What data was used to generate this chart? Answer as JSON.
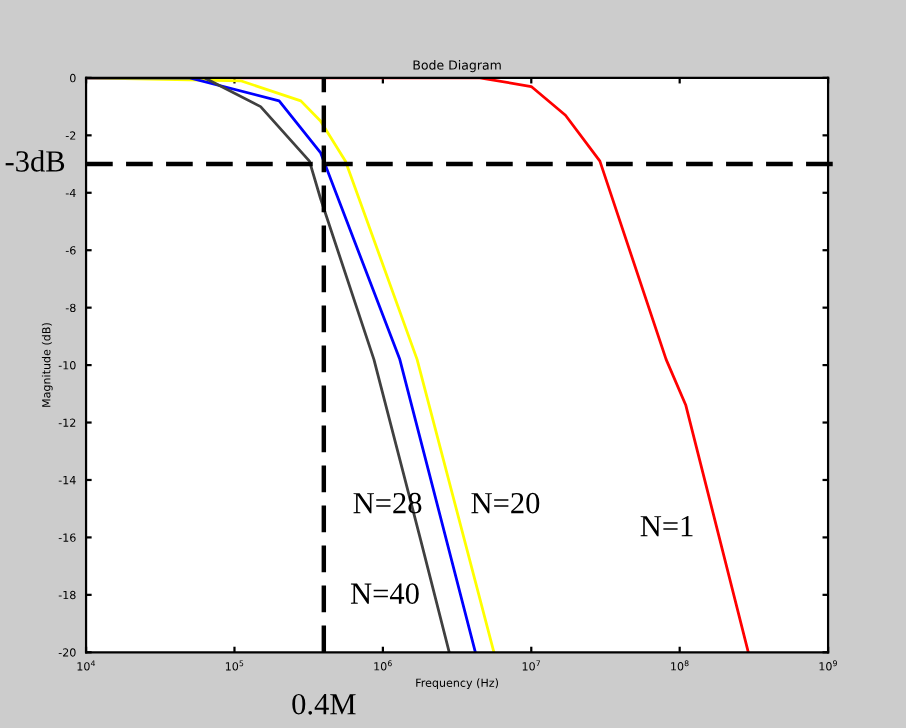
{
  "chart_data": {
    "type": "line",
    "title": "Bode Diagram",
    "xlabel": "Frequency (Hz)",
    "ylabel": "Magnitude (dB)",
    "log": "x",
    "grid": false,
    "xlim": [
      10000,
      1000000000
    ],
    "xticks": [
      {
        "value": 10000,
        "label": "10$^{4}$"
      },
      {
        "value": 100000,
        "label": "10$^{5}$"
      },
      {
        "value": 1000000,
        "label": "10$^{6}$"
      },
      {
        "value": 10000000,
        "label": "10$^{7}$"
      },
      {
        "value": 100000000,
        "label": "10$^{8}$"
      },
      {
        "value": 1000000000,
        "label": "10$^{9}$"
      }
    ],
    "ylim": [
      -20,
      0
    ],
    "yticks": [
      -20,
      -18,
      -16,
      -14,
      -12,
      -10,
      -8,
      -6,
      -4,
      -2,
      0
    ],
    "series": [
      {
        "name": "N=1",
        "color": "#ff0000",
        "x": [
          10000,
          4500000,
          10000000,
          17000000,
          29000000,
          81000000,
          110000000,
          290000000
        ],
        "values": [
          0,
          0,
          -0.3,
          -1.3,
          -2.9,
          -9.8,
          -11.4,
          -20
        ]
      },
      {
        "name": "N=20",
        "color": "#ffff00",
        "x": [
          10000,
          110000,
          280000,
          380000,
          560000,
          1700000,
          5600000
        ],
        "values": [
          0,
          -0.1,
          -0.8,
          -1.5,
          -2.9,
          -9.8,
          -20
        ]
      },
      {
        "name": "N=28",
        "color": "#0000ff",
        "x": [
          10000,
          50000,
          200000,
          380000,
          1300000,
          4200000
        ],
        "values": [
          0,
          0,
          -0.8,
          -2.6,
          -9.8,
          -20
        ]
      },
      {
        "name": "N=40",
        "color": "#404040",
        "x": [
          10000,
          63000,
          150000,
          320000,
          380000,
          870000,
          1800000,
          2800000
        ],
        "values": [
          0,
          0,
          -1.0,
          -2.9,
          -4.2,
          -9.8,
          -16.1,
          -20
        ]
      }
    ],
    "ref_lines": [
      {
        "axis": "y",
        "value": -3,
        "label": "-3dB",
        "color": "#000000",
        "line_style": "dashed"
      },
      {
        "axis": "x",
        "value": 400000,
        "label": "0.4M",
        "color": "#000000",
        "line_style": "dashed"
      }
    ]
  }
}
